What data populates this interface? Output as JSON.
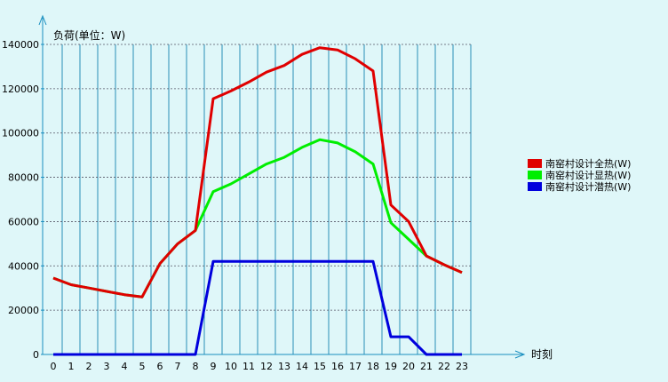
{
  "chart_data": {
    "type": "line",
    "ylabel": "负荷(单位：W)",
    "xlabel": "时刻",
    "x": [
      0,
      1,
      2,
      3,
      4,
      5,
      6,
      7,
      8,
      9,
      10,
      11,
      12,
      13,
      14,
      15,
      16,
      17,
      18,
      19,
      20,
      21,
      22,
      23
    ],
    "ylim": [
      0,
      140000
    ],
    "yticks": [
      0,
      20000,
      40000,
      60000,
      80000,
      100000,
      120000,
      140000
    ],
    "grid": true,
    "legend": "right",
    "series": [
      {
        "name": "南窑村设计全热(W)",
        "color": "#e00000",
        "values": [
          34500,
          31500,
          30000,
          28500,
          27000,
          26000,
          41000,
          50000,
          56000,
          115500,
          119000,
          123000,
          127500,
          130500,
          135500,
          138500,
          137500,
          133500,
          128000,
          67500,
          60000,
          44500,
          40500,
          37000
        ]
      },
      {
        "name": "南窑村设计显热(W)",
        "color": "#00ee00",
        "values": [
          34500,
          31500,
          30000,
          28500,
          27000,
          26000,
          41000,
          50000,
          56000,
          73500,
          77000,
          81500,
          86000,
          89000,
          93500,
          97000,
          95500,
          91500,
          86000,
          59500,
          52000,
          44500,
          40500,
          37000
        ]
      },
      {
        "name": "南窑村设计潜热(W)",
        "color": "#0000dd",
        "values": [
          0,
          0,
          0,
          0,
          0,
          0,
          0,
          0,
          0,
          42000,
          42000,
          42000,
          42000,
          42000,
          42000,
          42000,
          42000,
          42000,
          42000,
          8000,
          8000,
          0,
          0,
          0
        ]
      }
    ]
  }
}
